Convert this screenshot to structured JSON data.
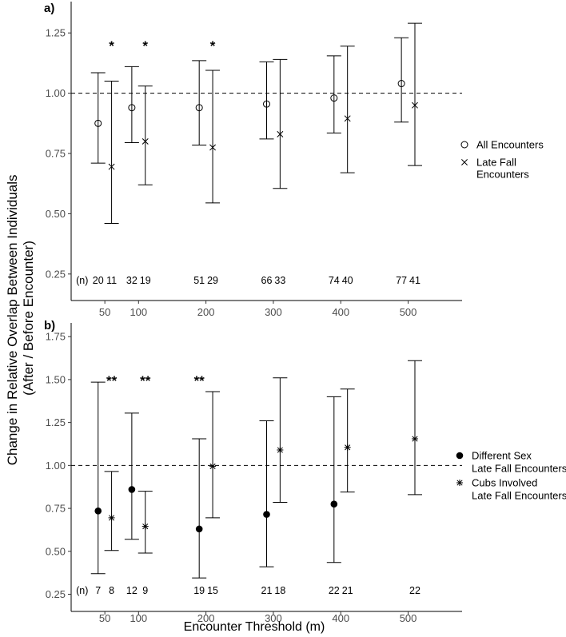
{
  "figure": {
    "ylabel_line1": "Change in Relative Overlap Between Individuals",
    "ylabel_line2": "(After / Before Encounter)",
    "xlabel": "Encounter Threshold (m)"
  },
  "chart_data": [
    {
      "type": "errorbar",
      "panel_label": "a)",
      "ylim": [
        0.14,
        1.38
      ],
      "yticks": [
        0.25,
        0.5,
        0.75,
        1.0,
        1.25
      ],
      "ytick_labels": [
        "0.25",
        "0.50",
        "0.75",
        "1.00",
        "1.25"
      ],
      "xlim": [
        0,
        580
      ],
      "xticks": [
        50,
        100,
        200,
        300,
        400,
        500
      ],
      "xtick_labels": [
        "50",
        "100",
        "200",
        "300",
        "400",
        "500"
      ],
      "reference_line": 1.0,
      "n_prefix": "(n)",
      "series": [
        {
          "name": "All Encounters",
          "marker": "circle",
          "points": [
            {
              "x": 40,
              "y": 0.875,
              "lo": 0.71,
              "hi": 1.085,
              "n": "20",
              "sig": ""
            },
            {
              "x": 90,
              "y": 0.94,
              "lo": 0.795,
              "hi": 1.11,
              "n": "32",
              "sig": ""
            },
            {
              "x": 190,
              "y": 0.94,
              "lo": 0.785,
              "hi": 1.135,
              "n": "51",
              "sig": ""
            },
            {
              "x": 290,
              "y": 0.955,
              "lo": 0.81,
              "hi": 1.13,
              "n": "66",
              "sig": ""
            },
            {
              "x": 390,
              "y": 0.98,
              "lo": 0.835,
              "hi": 1.155,
              "n": "74",
              "sig": ""
            },
            {
              "x": 490,
              "y": 1.04,
              "lo": 0.88,
              "hi": 1.23,
              "n": "77",
              "sig": ""
            }
          ]
        },
        {
          "name": "Late Fall Encounters",
          "marker": "x",
          "points": [
            {
              "x": 60,
              "y": 0.695,
              "lo": 0.46,
              "hi": 1.05,
              "n": "11",
              "sig": "*"
            },
            {
              "x": 110,
              "y": 0.8,
              "lo": 0.62,
              "hi": 1.03,
              "n": "19",
              "sig": "*"
            },
            {
              "x": 210,
              "y": 0.775,
              "lo": 0.545,
              "hi": 1.095,
              "n": "29",
              "sig": "*"
            },
            {
              "x": 310,
              "y": 0.83,
              "lo": 0.605,
              "hi": 1.14,
              "n": "33",
              "sig": ""
            },
            {
              "x": 410,
              "y": 0.895,
              "lo": 0.67,
              "hi": 1.195,
              "n": "40",
              "sig": ""
            },
            {
              "x": 510,
              "y": 0.95,
              "lo": 0.7,
              "hi": 1.29,
              "n": "41",
              "sig": ""
            }
          ]
        }
      ],
      "legend": [
        {
          "marker": "circle",
          "label_lines": [
            "All Encounters"
          ]
        },
        {
          "marker": "x",
          "label_lines": [
            "Late Fall",
            "Encounters"
          ]
        }
      ]
    },
    {
      "type": "errorbar",
      "panel_label": "b)",
      "ylim": [
        0.15,
        1.83
      ],
      "yticks": [
        0.25,
        0.5,
        0.75,
        1.0,
        1.25,
        1.5,
        1.75
      ],
      "ytick_labels": [
        "0.25",
        "0.50",
        "0.75",
        "1.00",
        "1.25",
        "1.50",
        "1.75"
      ],
      "xlim": [
        0,
        580
      ],
      "xticks": [
        50,
        100,
        200,
        300,
        400,
        500
      ],
      "xtick_labels": [
        "50",
        "100",
        "200",
        "300",
        "400",
        "500"
      ],
      "reference_line": 1.0,
      "n_prefix": "(n)",
      "series": [
        {
          "name": "Different Sex Late Fall Encounters",
          "marker": "dot",
          "points": [
            {
              "x": 40,
              "y": 0.735,
              "lo": 0.37,
              "hi": 1.485,
              "n": "7",
              "sig": ""
            },
            {
              "x": 90,
              "y": 0.86,
              "lo": 0.57,
              "hi": 1.305,
              "n": "12",
              "sig": ""
            },
            {
              "x": 190,
              "y": 0.63,
              "lo": 0.345,
              "hi": 1.155,
              "n": "19",
              "sig": "**"
            },
            {
              "x": 290,
              "y": 0.715,
              "lo": 0.41,
              "hi": 1.26,
              "n": "21",
              "sig": ""
            },
            {
              "x": 390,
              "y": 0.775,
              "lo": 0.435,
              "hi": 1.4,
              "n": "22",
              "sig": ""
            }
          ]
        },
        {
          "name": "Cubs Involved Late Fall Encounters",
          "marker": "asterisk",
          "points": [
            {
              "x": 60,
              "y": 0.695,
              "lo": 0.505,
              "hi": 0.965,
              "n": "8",
              "sig": "**"
            },
            {
              "x": 110,
              "y": 0.645,
              "lo": 0.49,
              "hi": 0.85,
              "n": "9",
              "sig": "**"
            },
            {
              "x": 210,
              "y": 0.995,
              "lo": 0.695,
              "hi": 1.43,
              "n": "15",
              "sig": ""
            },
            {
              "x": 310,
              "y": 1.09,
              "lo": 0.785,
              "hi": 1.51,
              "n": "18",
              "sig": ""
            },
            {
              "x": 410,
              "y": 1.105,
              "lo": 0.845,
              "hi": 1.445,
              "n": "21",
              "sig": ""
            },
            {
              "x": 510,
              "y": 1.155,
              "lo": 0.83,
              "hi": 1.61,
              "n": "22",
              "sig": ""
            }
          ]
        }
      ],
      "legend": [
        {
          "marker": "dot",
          "label_lines": [
            "Different Sex",
            "Late Fall Encounters"
          ]
        },
        {
          "marker": "asterisk",
          "label_lines": [
            "Cubs Involved",
            "Late Fall Encounters"
          ]
        }
      ]
    }
  ]
}
